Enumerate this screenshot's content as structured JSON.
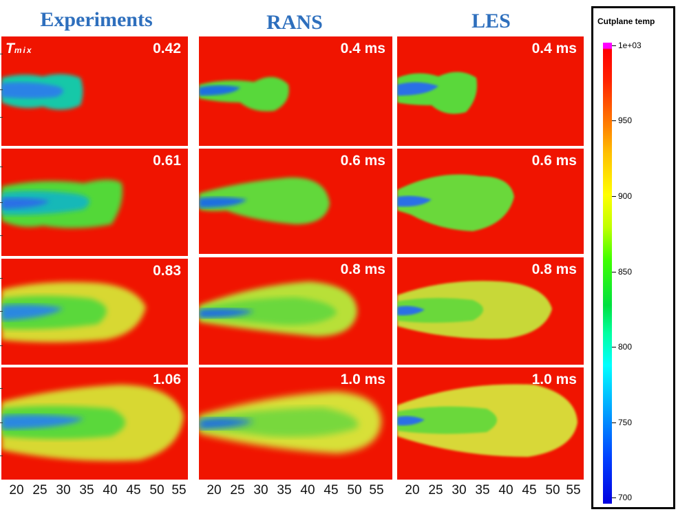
{
  "columns": [
    {
      "title": "Experiments",
      "labels": [
        "0.42",
        "0.61",
        "0.83",
        "1.06"
      ]
    },
    {
      "title": "RANS",
      "labels": [
        "0.4 ms",
        "0.6 ms",
        "0.8 ms",
        "1.0 ms"
      ]
    },
    {
      "title": "LES",
      "labels": [
        "0.4 ms",
        "0.6 ms",
        "0.8 ms",
        "1.0 ms"
      ]
    }
  ],
  "tmix_main": "T",
  "tmix_sub": "mix",
  "x_ticks": [
    "20",
    "25",
    "30",
    "35",
    "40",
    "45",
    "50",
    "55"
  ],
  "legend": {
    "title": "Cutplane temp",
    "ticks": [
      "1e+03",
      "950",
      "900",
      "850",
      "800",
      "750",
      "700"
    ]
  },
  "colors": {
    "background": "#f01400",
    "title": "#2e6fbd"
  }
}
